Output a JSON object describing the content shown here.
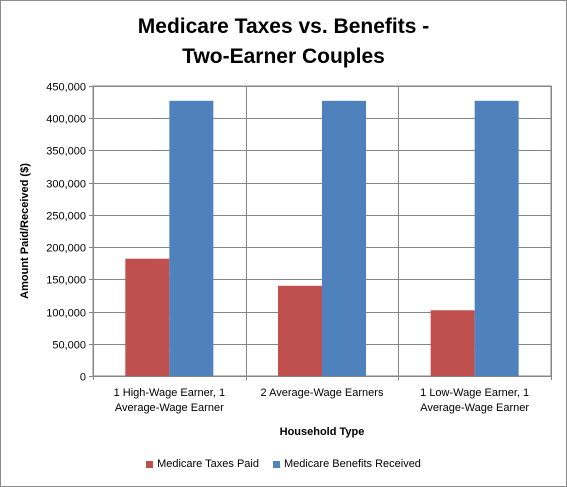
{
  "chart_data": {
    "type": "bar",
    "title_lines": [
      "Medicare Taxes vs. Benefits -",
      "Two-Earner Couples"
    ],
    "xlabel": "Household Type",
    "ylabel": "Amount Paid/Received  ($)",
    "categories": [
      [
        "1 High-Wage Earner, 1",
        "Average-Wage Earner"
      ],
      [
        "2 Average-Wage Earners"
      ],
      [
        "1 Low-Wage Earner, 1",
        "Average-Wage Earner"
      ]
    ],
    "series": [
      {
        "name": "Medicare Taxes Paid",
        "color": "#c0504d",
        "values": [
          182000,
          140000,
          102000
        ]
      },
      {
        "name": "Medicare Benefits Received",
        "color": "#4f81bd",
        "values": [
          427000,
          427000,
          427000
        ]
      }
    ],
    "ylim": [
      0,
      450000
    ],
    "yticks": [
      0,
      50000,
      100000,
      150000,
      200000,
      250000,
      300000,
      350000,
      400000,
      450000
    ],
    "ytick_labels": [
      "0",
      "50,000",
      "100,000",
      "150,000",
      "200,000",
      "250,000",
      "300,000",
      "350,000",
      "400,000",
      "450,000"
    ],
    "grid": "horizontal",
    "legend_position": "bottom"
  }
}
